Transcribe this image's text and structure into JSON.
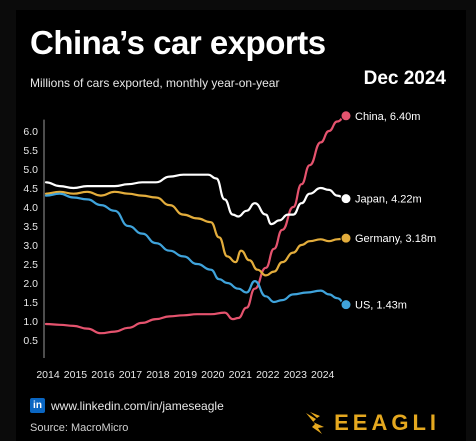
{
  "header": {
    "title": "China’s car exports",
    "subtitle": "Millions of cars exported, monthly year-on-year",
    "date": "Dec 2024"
  },
  "footer": {
    "link_text": "www.linkedin.com/in/jameseagle",
    "linkedin_icon_text": "in",
    "source": "Source: MacroMicro",
    "brand": "EEAGLI"
  },
  "colors": {
    "background": "#000000",
    "china": "#e5536e",
    "japan": "#ffffff",
    "germany": "#e3ad3c",
    "us": "#3fa3db",
    "brand": "#e5a81f"
  },
  "chart_data": {
    "type": "line",
    "title": "China’s car exports",
    "subtitle": "Millions of cars exported, monthly year-on-year",
    "xlabel": "",
    "ylabel": "",
    "x_ticks": [
      "2014",
      "2015",
      "2016",
      "2017",
      "2018",
      "2019",
      "2020",
      "2021",
      "2022",
      "2023",
      "2024"
    ],
    "y_ticks": [
      "0.5",
      "1.0",
      "1.5",
      "2.0",
      "2.5",
      "3.0",
      "3.5",
      "4.0",
      "4.5",
      "5.0",
      "5.5",
      "6.0"
    ],
    "xlim": [
      2014,
      2024.92
    ],
    "ylim": [
      0.5,
      6.3
    ],
    "grid": false,
    "series": [
      {
        "name": "China",
        "end_label": "China, 6.40m",
        "color": "#e5536e",
        "x": [
          2014,
          2014.5,
          2015,
          2015.5,
          2016,
          2016.5,
          2017,
          2017.5,
          2018,
          2018.5,
          2019,
          2019.5,
          2020,
          2020.5,
          2020.8,
          2021,
          2021.3,
          2021.6,
          2022,
          2022.3,
          2022.6,
          2023,
          2023.3,
          2023.6,
          2024,
          2024.3,
          2024.6,
          2024.92
        ],
        "values": [
          0.92,
          0.9,
          0.87,
          0.8,
          0.68,
          0.72,
          0.82,
          0.95,
          1.05,
          1.12,
          1.15,
          1.18,
          1.18,
          1.22,
          1.05,
          1.08,
          1.35,
          1.85,
          2.4,
          2.9,
          3.4,
          4.0,
          4.6,
          5.1,
          5.7,
          6.0,
          6.25,
          6.4
        ]
      },
      {
        "name": "Japan",
        "end_label": "Japan, 4.22m",
        "color": "#ffffff",
        "x": [
          2014,
          2014.5,
          2015,
          2015.5,
          2016,
          2016.5,
          2017,
          2017.5,
          2018,
          2018.5,
          2019,
          2019.5,
          2019.9,
          2020.2,
          2020.5,
          2020.8,
          2021,
          2021.3,
          2021.6,
          2022,
          2022.2,
          2022.5,
          2022.8,
          2023,
          2023.3,
          2023.6,
          2024,
          2024.3,
          2024.6,
          2024.92
        ],
        "values": [
          4.65,
          4.55,
          4.5,
          4.55,
          4.55,
          4.55,
          4.6,
          4.65,
          4.65,
          4.8,
          4.85,
          4.85,
          4.85,
          4.75,
          4.2,
          3.8,
          3.75,
          3.9,
          4.1,
          3.8,
          3.55,
          3.65,
          3.8,
          3.8,
          4.1,
          4.35,
          4.5,
          4.45,
          4.3,
          4.22
        ]
      },
      {
        "name": "Germany",
        "end_label": "Germany, 3.18m",
        "color": "#e3ad3c",
        "x": [
          2014,
          2014.5,
          2015,
          2015.5,
          2016,
          2016.5,
          2017,
          2017.5,
          2018,
          2018.5,
          2019,
          2019.5,
          2020,
          2020.3,
          2020.6,
          2020.9,
          2021.1,
          2021.4,
          2021.7,
          2022,
          2022.3,
          2022.6,
          2023,
          2023.3,
          2023.6,
          2024,
          2024.3,
          2024.6,
          2024.92
        ],
        "values": [
          4.35,
          4.4,
          4.35,
          4.4,
          4.3,
          4.4,
          4.35,
          4.3,
          4.25,
          4.05,
          3.8,
          3.7,
          3.6,
          3.2,
          2.7,
          2.55,
          2.85,
          2.6,
          2.35,
          2.2,
          2.3,
          2.55,
          2.8,
          3.0,
          3.1,
          3.15,
          3.1,
          3.15,
          3.18
        ]
      },
      {
        "name": "US",
        "end_label": "US, 1.43m",
        "color": "#3fa3db",
        "x": [
          2014,
          2014.5,
          2015,
          2015.5,
          2016,
          2016.5,
          2017,
          2017.5,
          2018,
          2018.5,
          2019,
          2019.5,
          2020,
          2020.3,
          2020.6,
          2021,
          2021.3,
          2021.6,
          2022,
          2022.3,
          2022.6,
          2023,
          2023.5,
          2024,
          2024.3,
          2024.6,
          2024.92
        ],
        "values": [
          4.3,
          4.35,
          4.25,
          4.2,
          4.05,
          3.9,
          3.5,
          3.3,
          3.05,
          2.85,
          2.7,
          2.5,
          2.35,
          2.1,
          2.0,
          1.85,
          1.75,
          2.05,
          1.65,
          1.5,
          1.55,
          1.7,
          1.75,
          1.8,
          1.7,
          1.6,
          1.43
        ]
      }
    ]
  }
}
